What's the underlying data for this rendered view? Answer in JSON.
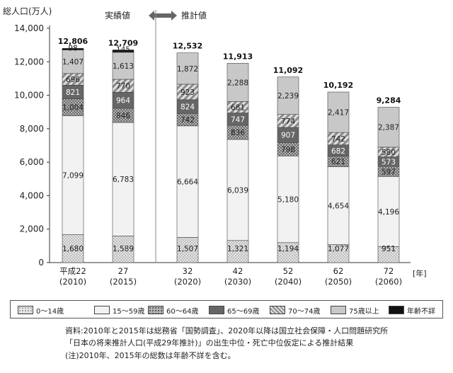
{
  "chart_data": {
    "type": "bar",
    "stacked": true,
    "ylabel": "総人口(万人)",
    "xunit": "[年]",
    "ylim": [
      0,
      14000
    ],
    "yticks": [
      "0",
      "2,000",
      "4,000",
      "6,000",
      "8,000",
      "10,000",
      "12,000",
      "14,000"
    ],
    "categories": [
      {
        "line1": "平成22",
        "line2": "(2010)"
      },
      {
        "line1": "27",
        "line2": "(2015)"
      },
      {
        "line1": "32",
        "line2": "(2020)"
      },
      {
        "line1": "42",
        "line2": "(2030)"
      },
      {
        "line1": "52",
        "line2": "(2040)"
      },
      {
        "line1": "62",
        "line2": "(2050)"
      },
      {
        "line1": "72",
        "line2": "(2060)"
      }
    ],
    "totals": [
      12806,
      12709,
      12532,
      11913,
      11092,
      10192,
      9284
    ],
    "total_labels": [
      "12,806",
      "12,709",
      "12,532",
      "11,913",
      "11,092",
      "10,192",
      "9,284"
    ],
    "series": [
      {
        "name": "0〜14歳",
        "values": [
          1680,
          1589,
          1507,
          1321,
          1194,
          1077,
          951
        ],
        "labels": [
          "1,680",
          "1,589",
          "1,507",
          "1,321",
          "1,194",
          "1,077",
          "951"
        ]
      },
      {
        "name": "15〜59歳",
        "values": [
          7099,
          6783,
          6664,
          6039,
          5180,
          4654,
          4196
        ],
        "labels": [
          "7,099",
          "6,783",
          "6,664",
          "6,039",
          "5,180",
          "4,654",
          "4,196"
        ]
      },
      {
        "name": "60〜64歳",
        "values": [
          1004,
          846,
          742,
          836,
          798,
          621,
          597
        ],
        "labels": [
          "1,004",
          "846",
          "742",
          "836",
          "798",
          "621",
          "597"
        ]
      },
      {
        "name": "65〜69歳",
        "values": [
          821,
          964,
          824,
          747,
          907,
          682,
          573
        ],
        "labels": [
          "821",
          "964",
          "824",
          "747",
          "907",
          "682",
          "573"
        ]
      },
      {
        "name": "70〜74歳",
        "values": [
          696,
          770,
          923,
          681,
          774,
          742,
          580
        ],
        "labels": [
          "696",
          "770",
          "923",
          "681",
          "774",
          "742",
          "580"
        ]
      },
      {
        "name": "75歳以上",
        "values": [
          1407,
          1613,
          1872,
          2288,
          2239,
          2417,
          2387
        ],
        "labels": [
          "1,407",
          "1,613",
          "1,872",
          "2,288",
          "2,239",
          "2,417",
          "2,387"
        ]
      },
      {
        "name": "年齢不詳",
        "values": [
          98,
          145,
          0,
          0,
          0,
          0,
          0
        ],
        "labels": [
          "98",
          "145",
          "",
          "",
          "",
          "",
          ""
        ]
      }
    ],
    "period_labels": {
      "actual": "実績値",
      "estimate": "推計値"
    },
    "colors": {
      "s0": "#d9d9d9",
      "s1": "#f2f2f2",
      "s2": "#a6a6a6",
      "s3": "#666666",
      "s4": "#bfbfbf",
      "s5": "#c8c8c8",
      "s6": "#111111"
    }
  },
  "notes": {
    "line1": "資料:2010年と2015年は総務省「国勢調査」、2020年以降は国立社会保障・人口問題研究所",
    "line2": "「日本の将来推計人口(平成29年推計)」の出生中位・死亡中位仮定による推計結果",
    "line3": "(注)2010年、2015年の総数は年齢不詳を含む。"
  }
}
